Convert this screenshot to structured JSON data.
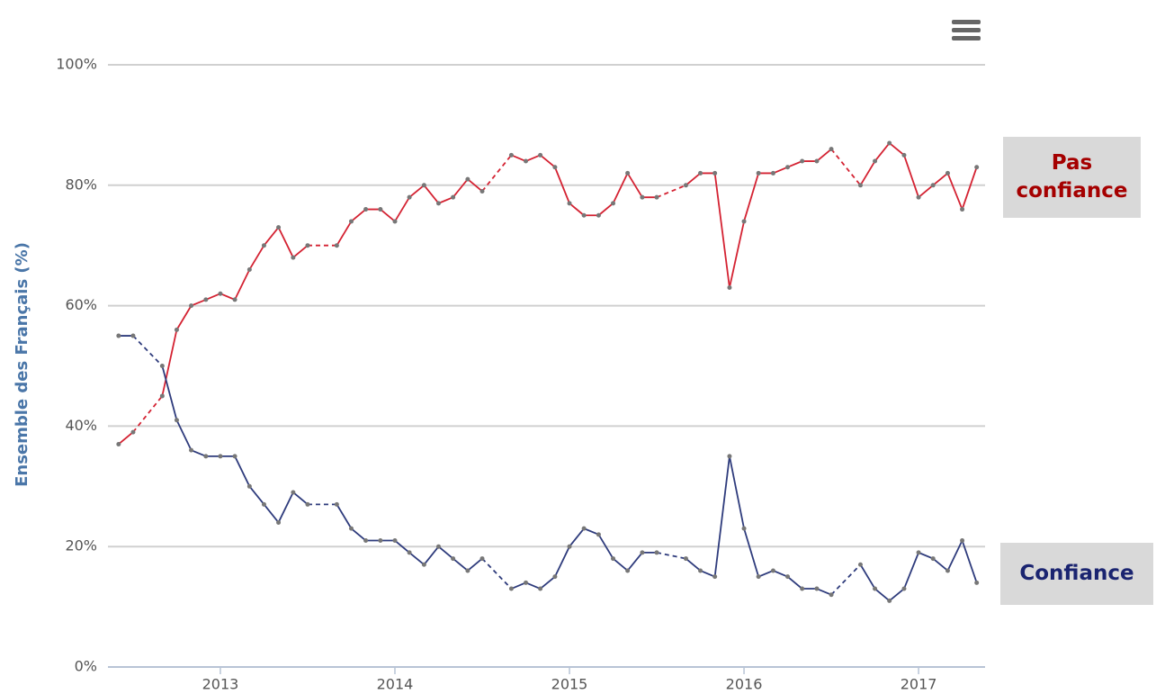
{
  "chart_data": {
    "type": "line",
    "y_label": "Ensemble des Français (%)",
    "x": [
      2012.417,
      2012.5,
      2012.667,
      2012.75,
      2012.833,
      2012.917,
      2013,
      2013.083,
      2013.167,
      2013.25,
      2013.333,
      2013.417,
      2013.5,
      2013.667,
      2013.75,
      2013.833,
      2013.917,
      2014,
      2014.083,
      2014.167,
      2014.25,
      2014.333,
      2014.417,
      2014.5,
      2014.667,
      2014.75,
      2014.833,
      2014.917,
      2015,
      2015.083,
      2015.167,
      2015.25,
      2015.333,
      2015.417,
      2015.5,
      2015.667,
      2015.75,
      2015.833,
      2015.917,
      2016,
      2016.083,
      2016.167,
      2016.25,
      2016.333,
      2016.417,
      2016.5,
      2016.667,
      2016.75,
      2016.833,
      2016.917,
      2017,
      2017.083,
      2017.167,
      2017.25,
      2017.333
    ],
    "series": [
      {
        "name": "Pas confiance",
        "color": "#d42232",
        "label_color": "#a50000",
        "values": [
          37,
          39,
          45,
          56,
          60,
          61,
          62,
          61,
          66,
          70,
          73,
          68,
          70,
          70,
          74,
          76,
          76,
          74,
          78,
          80,
          77,
          78,
          81,
          79,
          85,
          84,
          85,
          83,
          77,
          75,
          75,
          77,
          82,
          78,
          78,
          80,
          82,
          82,
          63,
          74,
          82,
          82,
          83,
          84,
          84,
          86,
          80,
          84,
          87,
          85,
          78,
          80,
          82,
          76,
          83
        ]
      },
      {
        "name": "Confiance",
        "color": "#2e3b7c",
        "label_color": "#1a2470",
        "values": [
          55,
          55,
          50,
          41,
          36,
          35,
          35,
          35,
          30,
          27,
          24,
          29,
          27,
          27,
          23,
          21,
          21,
          21,
          19,
          17,
          20,
          18,
          16,
          18,
          13,
          14,
          13,
          15,
          20,
          23,
          22,
          18,
          16,
          19,
          19,
          18,
          16,
          15,
          35,
          23,
          15,
          16,
          15,
          13,
          13,
          12,
          17,
          13,
          11,
          13,
          19,
          18,
          16,
          21,
          14
        ]
      }
    ],
    "xlim": [
      2012.356,
      2017.381
    ],
    "xticks": [
      2013,
      2014,
      2015,
      2016,
      2017
    ],
    "ylim": [
      0,
      100
    ],
    "yticks": [
      {
        "value": 0,
        "label": "0%"
      },
      {
        "value": 20,
        "label": "20%"
      },
      {
        "value": 40,
        "label": "40%"
      },
      {
        "value": 60,
        "label": "60%"
      },
      {
        "value": 80,
        "label": "80%"
      },
      {
        "value": 100,
        "label": "100%"
      }
    ],
    "grid": true
  }
}
